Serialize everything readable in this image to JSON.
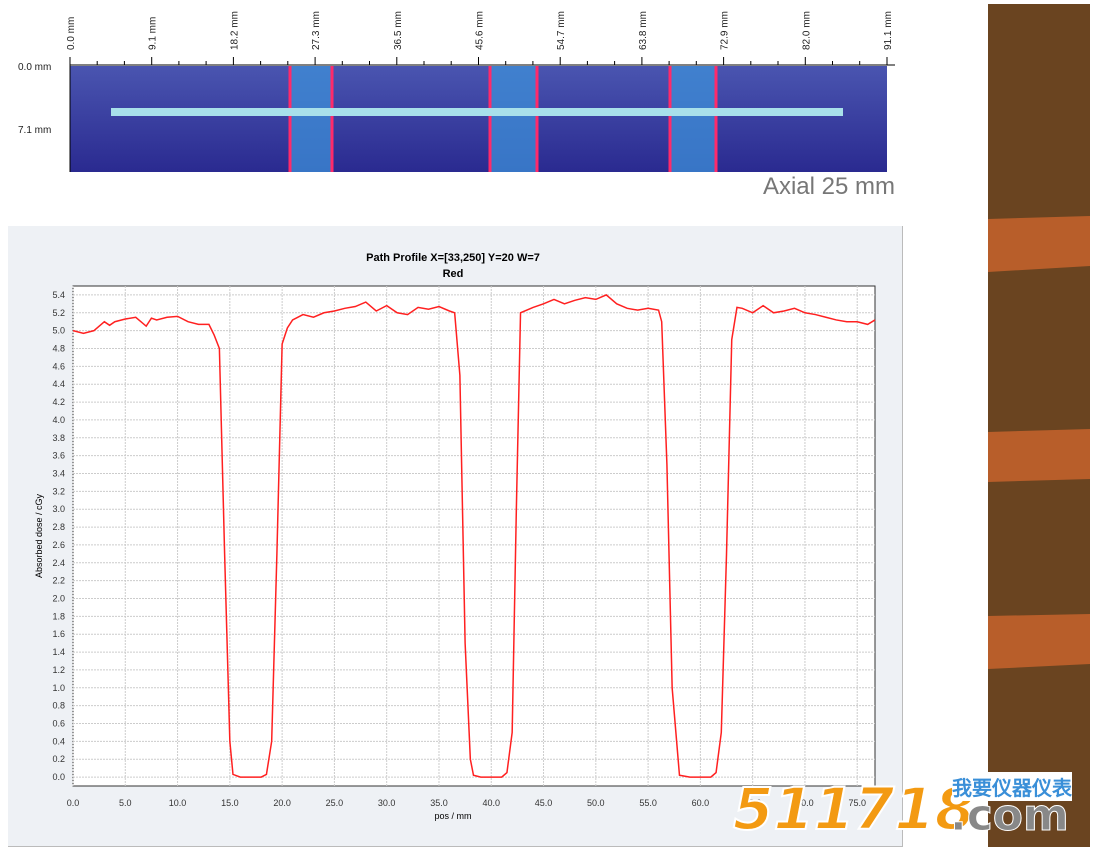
{
  "film_image": {
    "x_ticks": [
      "0.0 mm",
      "9.1 mm",
      "18.2 mm",
      "27.3 mm",
      "36.5 mm",
      "45.6 mm",
      "54.7 mm",
      "63.8 mm",
      "72.9 mm",
      "82.0 mm",
      "91.1 mm"
    ],
    "y_ticks": [
      "0.0 mm",
      "7.1 mm"
    ],
    "caption": "Axial 25 mm",
    "colors": {
      "background": "#3b3fa0",
      "stripe": "#3d8fd8",
      "edge": "#ff2a6a",
      "path_line": "#a8e0ea"
    }
  },
  "chart_data": {
    "type": "line",
    "title": "Path Profile X=[33,250] Y=20 W=7",
    "subtitle": "Red",
    "xlabel": "pos / mm",
    "ylabel": "Absorbed dose / cGy",
    "xlim": [
      0,
      76.7
    ],
    "ylim": [
      -0.1,
      5.5
    ],
    "grid": true,
    "x_ticks": [
      "0.0",
      "5.0",
      "10.0",
      "15.0",
      "20.0",
      "25.0",
      "30.0",
      "35.0",
      "40.0",
      "45.0",
      "50.0",
      "55.0",
      "60.0",
      "65.0",
      "70.0",
      "75.0"
    ],
    "y_ticks": [
      "0.0",
      "0.2",
      "0.4",
      "0.6",
      "0.8",
      "1.0",
      "1.2",
      "1.4",
      "1.6",
      "1.8",
      "2.0",
      "2.2",
      "2.4",
      "2.6",
      "2.8",
      "3.0",
      "3.2",
      "3.4",
      "3.6",
      "3.8",
      "4.0",
      "4.2",
      "4.4",
      "4.6",
      "4.8",
      "5.0",
      "5.2",
      "5.4"
    ],
    "line_color": "#ff2020",
    "x": [
      0,
      1,
      2,
      3,
      3.5,
      4,
      5,
      6,
      7,
      7.5,
      8,
      9,
      10,
      11,
      12,
      13,
      13.5,
      14,
      14.5,
      15,
      15.3,
      16,
      17,
      18,
      18.5,
      19,
      19.5,
      20,
      20.5,
      21,
      22,
      23,
      24,
      25,
      26,
      27,
      28,
      29,
      30,
      31,
      32,
      33,
      34,
      35,
      36,
      36.5,
      37,
      37.5,
      38,
      38.3,
      39,
      40,
      41,
      41.5,
      42,
      42.4,
      42.8,
      44,
      45,
      46,
      47,
      48,
      49,
      50,
      51,
      52,
      53,
      54,
      55,
      56,
      56.3,
      56.8,
      57.3,
      58,
      59,
      60,
      61,
      61.5,
      62,
      62.5,
      63,
      63.5,
      64,
      65,
      66,
      67,
      68,
      69,
      70,
      71,
      72,
      73,
      74,
      75,
      76,
      76.7
    ],
    "y": [
      5.0,
      4.97,
      5.0,
      5.1,
      5.06,
      5.1,
      5.13,
      5.15,
      5.05,
      5.14,
      5.12,
      5.15,
      5.16,
      5.1,
      5.07,
      5.07,
      4.95,
      4.8,
      2.5,
      0.4,
      0.03,
      0.0,
      0.0,
      0.0,
      0.03,
      0.4,
      2.5,
      4.85,
      5.03,
      5.12,
      5.18,
      5.15,
      5.2,
      5.22,
      5.25,
      5.27,
      5.32,
      5.22,
      5.28,
      5.2,
      5.18,
      5.26,
      5.24,
      5.27,
      5.22,
      5.2,
      4.5,
      1.5,
      0.2,
      0.02,
      0.0,
      0.0,
      0.0,
      0.05,
      0.5,
      3.0,
      5.2,
      5.26,
      5.3,
      5.35,
      5.3,
      5.34,
      5.37,
      5.35,
      5.4,
      5.3,
      5.25,
      5.23,
      5.25,
      5.23,
      5.1,
      3.5,
      1.0,
      0.02,
      0.0,
      0.0,
      0.0,
      0.05,
      0.5,
      2.5,
      4.9,
      5.26,
      5.25,
      5.2,
      5.28,
      5.2,
      5.22,
      5.25,
      5.2,
      5.18,
      5.15,
      5.12,
      5.1,
      5.1,
      5.07,
      5.12
    ]
  },
  "watermark": {
    "number": "511718",
    "chinese": "我要仪器仪表",
    "domain": ".com"
  }
}
